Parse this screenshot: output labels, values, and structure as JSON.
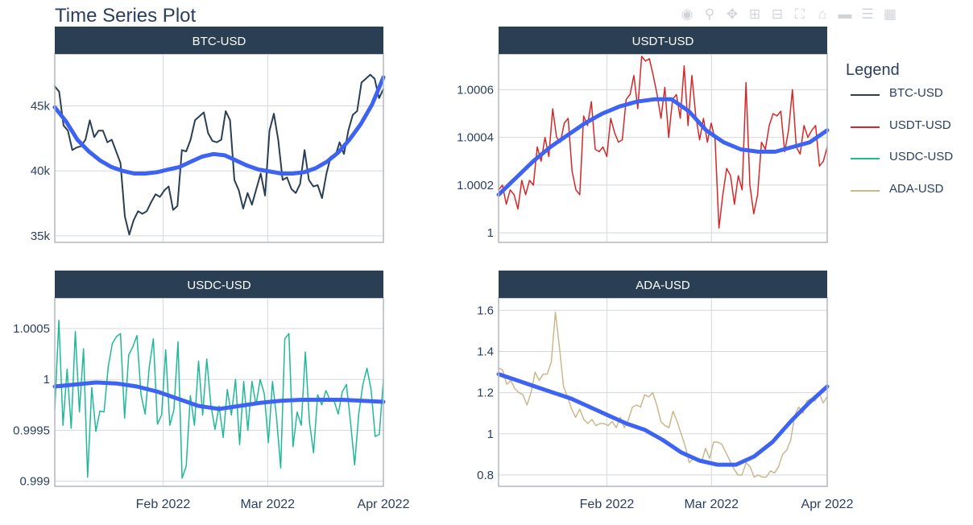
{
  "title": "Time Series Plot",
  "modebar": {
    "icons": [
      "camera-icon",
      "zoom-icon",
      "pan-icon",
      "zoom-in-icon",
      "zoom-out-icon",
      "autoscale-icon",
      "reset-axes-icon",
      "hover-closest-icon",
      "hover-compare-icon",
      "plotly-logo-icon"
    ]
  },
  "legend": {
    "title": "Legend",
    "items": [
      {
        "label": "BTC-USD",
        "color": "#2a3f54"
      },
      {
        "label": "USDT-USD",
        "color": "#d62728"
      },
      {
        "label": "USDC-USD",
        "color": "#1fb89a"
      },
      {
        "label": "ADA-USD",
        "color": "#c9b88d"
      }
    ]
  },
  "chart_data": [
    {
      "type": "line",
      "title": "BTC-USD",
      "x_ticks": [
        "Feb 2022",
        "Mar 2022",
        "Apr 2022"
      ],
      "x_tick_days": [
        0,
        28,
        59
      ],
      "x_range_days": [
        -29,
        59
      ],
      "ylim": [
        34500,
        49000
      ],
      "y_ticks": [
        35000,
        40000,
        45000
      ],
      "y_tick_labels": [
        "35k",
        "40k",
        "45k"
      ],
      "series": [
        {
          "color": "#2a3f54",
          "width": 2,
          "values": [
            46500,
            46100,
            43500,
            43100,
            41600,
            41800,
            41900,
            42400,
            43900,
            42600,
            43100,
            43100,
            42200,
            42400,
            41500,
            40600,
            36500,
            35100,
            36200,
            36900,
            36700,
            36900,
            37600,
            38200,
            38000,
            38500,
            38800,
            37000,
            37300,
            41600,
            41500,
            42400,
            43900,
            44200,
            44500,
            42900,
            42300,
            42200,
            42400,
            44600,
            43900,
            39300,
            38500,
            37100,
            38300,
            37400,
            38600,
            39800,
            38100,
            43100,
            44400,
            42400,
            39300,
            39500,
            38600,
            38300,
            39000,
            41600,
            39300,
            38800,
            38900,
            37900,
            39800,
            41100,
            41100,
            42200,
            41300,
            43100,
            44300,
            44600,
            46800,
            47100,
            47400,
            47100,
            45600,
            46300
          ]
        },
        {
          "color": "#3c63f3",
          "width": 5,
          "values": [
            44900,
            43800,
            42400,
            41500,
            40800,
            40300,
            40000,
            39800,
            39800,
            39900,
            40100,
            40300,
            40700,
            41100,
            41300,
            41200,
            40800,
            40400,
            40100,
            39950,
            39800,
            39800,
            39900,
            40200,
            40700,
            41400,
            42400,
            43600,
            45100,
            47200
          ]
        }
      ]
    },
    {
      "type": "line",
      "title": "USDT-USD",
      "x_ticks": [
        "Feb 2022",
        "Mar 2022",
        "Apr 2022"
      ],
      "x_tick_days": [
        0,
        28,
        59
      ],
      "x_range_days": [
        -29,
        59
      ],
      "ylim": [
        0.99996,
        1.00075
      ],
      "y_ticks": [
        1.0,
        1.0002,
        1.0004,
        1.0006
      ],
      "y_tick_labels": [
        "1",
        "1.0002",
        "1.0004",
        "1.0006"
      ],
      "series": [
        {
          "color": "#d62728",
          "width": 1.5,
          "values": [
            1.00018,
            1.0002,
            1.00012,
            1.00018,
            1.00016,
            1.0001,
            1.00022,
            1.00016,
            1.00022,
            1.0002,
            1.00036,
            1.0003,
            1.0004,
            1.00032,
            1.00052,
            1.0004,
            1.00038,
            1.00046,
            1.00048,
            1.00026,
            1.00018,
            1.00016,
            1.00049,
            1.00045,
            1.00055,
            1.00035,
            1.00034,
            1.00036,
            1.00032,
            1.00048,
            1.00042,
            1.00038,
            1.00039,
            1.00056,
            1.00058,
            1.00066,
            1.00052,
            1.00074,
            1.00072,
            1.00073,
            1.00066,
            1.00058,
            1.00048,
            1.00061,
            1.0004,
            1.00056,
            1.00058,
            1.00048,
            1.0007,
            1.00045,
            1.00066,
            1.00049,
            1.00039,
            1.00048,
            1.00038,
            1.00046,
            1.00039,
            1.00002,
            1.00016,
            1.00027,
            1.00024,
            1.00012,
            1.00024,
            1.00018,
            1.00063,
            1.0002,
            1.00008,
            1.00016,
            1.00038,
            1.00035,
            1.00045,
            1.0005,
            1.00049,
            1.00051,
            1.00034,
            1.00043,
            1.0006,
            1.00036,
            1.00033,
            1.00045,
            1.0004,
            1.00043,
            1.00045,
            1.00028,
            1.0003,
            1.00036
          ]
        },
        {
          "color": "#3c63f3",
          "width": 5,
          "values": [
            1.00016,
            1.00023,
            1.0003,
            1.00036,
            1.00041,
            1.00046,
            1.0005,
            1.00053,
            1.00055,
            1.00056,
            1.00056,
            1.00051,
            1.00043,
            1.00038,
            1.00035,
            1.00034,
            1.00034,
            1.00036,
            1.00038,
            1.00043
          ]
        }
      ]
    },
    {
      "type": "line",
      "title": "USDC-USD",
      "x_ticks": [
        "Feb 2022",
        "Mar 2022",
        "Apr 2022"
      ],
      "x_tick_days": [
        0,
        28,
        59
      ],
      "x_range_days": [
        -29,
        59
      ],
      "ylim": [
        0.99895,
        1.0008
      ],
      "y_ticks": [
        0.999,
        0.9995,
        1.0,
        1.0005
      ],
      "y_tick_labels": [
        "0.999",
        "0.9995",
        "1",
        "1.0005"
      ],
      "series": [
        {
          "color": "#1fb89a",
          "width": 1.5,
          "values": [
            0.9997,
            1.00058,
            0.99955,
            1.0001,
            0.99952,
            1.00047,
            0.99968,
            1.0003,
            0.99904,
            0.99992,
            0.99949,
            0.99969,
            0.99968,
            1.00012,
            1.00035,
            1.00042,
            1.00045,
            0.99962,
            1.00024,
            1.00032,
            1.00043,
            0.99985,
            0.99966,
            1.00012,
            1.0004,
            0.99956,
            0.99965,
            1.00029,
            0.99955,
            0.9997,
            1.00037,
            0.99903,
            0.99915,
            0.99984,
            0.99955,
            1.00018,
            0.99965,
            1.0002,
            0.99975,
            0.99951,
            0.99974,
            0.99943,
            0.9999,
            0.99965,
            1.0,
            0.99936,
            0.99998,
            0.9995,
            0.99998,
            0.99975,
            1.0,
            0.99986,
            0.99938,
            0.99998,
            0.99962,
            0.99913,
            1.0004,
            1.00045,
            0.99934,
            0.99968,
            0.99955,
            1.00027,
            0.99958,
            0.99928,
            0.99985,
            0.99975,
            0.99989,
            0.9998,
            0.99979,
            0.99966,
            0.99988,
            0.99995,
            0.99958,
            0.99916,
            0.99966,
            0.99995,
            1.00011,
            0.9999,
            0.99944,
            0.99946,
            1.0
          ]
        },
        {
          "color": "#3c63f3",
          "width": 5,
          "values": [
            0.99993,
            0.99995,
            0.99997,
            0.99996,
            0.99993,
            0.99988,
            0.99981,
            0.99974,
            0.99971,
            0.99974,
            0.99977,
            0.99979,
            0.9998,
            0.9998,
            0.9998,
            0.99979,
            0.99978
          ]
        }
      ]
    },
    {
      "type": "line",
      "title": "ADA-USD",
      "x_ticks": [
        "Feb 2022",
        "Mar 2022",
        "Apr 2022"
      ],
      "x_tick_days": [
        0,
        28,
        59
      ],
      "x_range_days": [
        -29,
        59
      ],
      "ylim": [
        0.745,
        1.66
      ],
      "y_ticks": [
        0.8,
        1.0,
        1.2,
        1.4,
        1.6
      ],
      "y_tick_labels": [
        "0.8",
        "1",
        "1.2",
        "1.4",
        "1.6"
      ],
      "series": [
        {
          "color": "#c9b88d",
          "width": 1.5,
          "values": [
            1.32,
            1.31,
            1.24,
            1.26,
            1.22,
            1.2,
            1.19,
            1.14,
            1.2,
            1.3,
            1.26,
            1.29,
            1.29,
            1.35,
            1.59,
            1.42,
            1.23,
            1.18,
            1.12,
            1.08,
            1.12,
            1.07,
            1.05,
            1.07,
            1.04,
            1.05,
            1.05,
            1.04,
            1.06,
            1.03,
            1.08,
            1.03,
            1.07,
            1.13,
            1.14,
            1.13,
            1.19,
            1.18,
            1.2,
            1.14,
            1.06,
            1.04,
            1.03,
            1.11,
            1.06,
            1.0,
            0.94,
            0.86,
            0.88,
            0.87,
            0.86,
            0.93,
            0.88,
            0.96,
            0.96,
            0.95,
            0.91,
            0.87,
            0.83,
            0.8,
            0.8,
            0.86,
            0.84,
            0.79,
            0.8,
            0.79,
            0.79,
            0.82,
            0.81,
            0.84,
            0.9,
            0.92,
            0.97,
            1.09,
            1.13,
            1.1,
            1.16,
            1.17,
            1.16,
            1.2,
            1.15,
            1.18
          ]
        },
        {
          "color": "#3c63f3",
          "width": 5,
          "values": [
            1.29,
            1.26,
            1.23,
            1.2,
            1.17,
            1.13,
            1.09,
            1.05,
            1.02,
            0.97,
            0.91,
            0.87,
            0.85,
            0.85,
            0.89,
            0.96,
            1.06,
            1.15,
            1.23
          ]
        }
      ]
    }
  ]
}
